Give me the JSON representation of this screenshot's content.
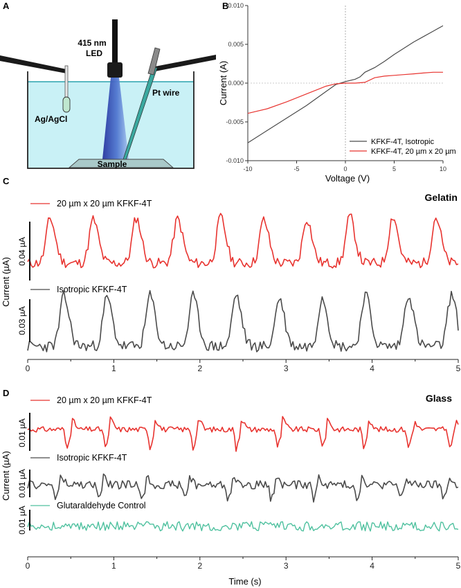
{
  "panel_a": {
    "label": "A",
    "led_label_line1": "415 nm",
    "led_label_line2": "LED",
    "pt_label": "Pt wire",
    "ref_label": "Ag/AgCl",
    "sample_label": "Sample"
  },
  "colors": {
    "red": "#e8332f",
    "gray": "#4a4a4a",
    "teal": "#4fc19f",
    "water": "#c9f1f6",
    "water_line": "#2aa3ad",
    "axis": "#333333"
  },
  "chart_data": [
    {
      "panel": "B",
      "type": "line",
      "xlabel": "Voltage (V)",
      "ylabel": "Current (A)",
      "xlim": [
        -10,
        10
      ],
      "ylim": [
        -0.01,
        0.01
      ],
      "xticks": [
        -10,
        -5,
        0,
        5,
        10
      ],
      "yticks": [
        -0.01,
        -0.005,
        0.0,
        0.005,
        0.01
      ],
      "ytick_labels": [
        "-0.010",
        "-0.005",
        "0.000",
        "0.005",
        "0.010"
      ],
      "grid": false,
      "reference_lines": "dotted at x=0 and y=0",
      "legend_position": "bottom-right",
      "series": [
        {
          "name": "KFKF-4T, Isotropic",
          "color": "gray",
          "x": [
            -10,
            -8,
            -6,
            -4,
            -2,
            -1,
            0,
            1,
            1.5,
            2,
            3,
            4,
            5,
            6,
            7,
            8,
            9,
            10
          ],
          "y": [
            -0.0077,
            -0.0061,
            -0.0045,
            -0.0029,
            -0.0011,
            -0.0002,
            0.0002,
            0.0005,
            0.0008,
            0.0014,
            0.002,
            0.0028,
            0.0037,
            0.0045,
            0.0053,
            0.006,
            0.0067,
            0.0074
          ]
        },
        {
          "name": "KFKF-4T, 20 µm x 20 µm",
          "color": "red",
          "x": [
            -10,
            -8,
            -6,
            -4,
            -2,
            -1,
            0,
            1,
            2,
            3,
            4,
            5,
            6,
            7,
            8,
            9,
            10
          ],
          "y": [
            -0.0039,
            -0.0033,
            -0.0024,
            -0.0014,
            -0.0004,
            -0.0001,
            0.0,
            0.0,
            0.0001,
            0.0007,
            0.0009,
            0.001,
            0.0011,
            0.0012,
            0.0013,
            0.0014,
            0.0014
          ]
        }
      ]
    },
    {
      "panel": "C",
      "type": "line",
      "title": "Gelatin",
      "xlabel": "",
      "ylabel": "Current (µA)",
      "xlim": [
        0,
        5
      ],
      "xticks": [
        0,
        1,
        2,
        3,
        4,
        5
      ],
      "series": [
        {
          "name": "20 µm x 20 µm KFKF-4T",
          "color": "red",
          "scale_bar": "0.04 µA",
          "period_s": 0.5,
          "first_peak_s": 0.26,
          "peak_times_s": [
            0.26,
            0.76,
            1.26,
            1.74,
            2.24,
            2.74,
            3.24,
            3.74,
            4.24,
            4.74
          ],
          "peak_heights": [
            0.95,
            0.93,
            0.96,
            0.94,
            0.98,
            0.92,
            0.95,
            0.99,
            1.0,
            0.98
          ]
        },
        {
          "name": "Isotropic KFKF-4T",
          "color": "gray",
          "scale_bar": "0.03 µA",
          "period_s": 0.5,
          "first_peak_s": 0.42,
          "peak_times_s": [
            0.42,
            0.92,
            1.42,
            1.92,
            2.42,
            2.92,
            3.42,
            3.92,
            4.42,
            4.92
          ],
          "peak_heights": [
            0.95,
            0.93,
            0.96,
            0.94,
            0.98,
            0.92,
            0.95,
            0.99,
            1.0,
            0.98
          ]
        }
      ]
    },
    {
      "panel": "D",
      "type": "line",
      "title": "Glass",
      "xlabel": "Time (s)",
      "ylabel": "Current (µA)",
      "xlim": [
        0,
        5
      ],
      "xticks": [
        0,
        1,
        2,
        3,
        4,
        5
      ],
      "series": [
        {
          "name": "20 µm x 20 µm KFKF-4T",
          "color": "red",
          "scale_bar": "0.01 µA",
          "period_s": 0.5,
          "first_drop_s": 0.45,
          "drop_times_s": [
            0.45,
            0.9,
            1.42,
            1.92,
            2.42,
            2.9,
            3.42,
            3.9,
            4.42,
            4.9
          ]
        },
        {
          "name": "Isotropic KFKF-4T",
          "color": "gray",
          "scale_bar": "0.01 µA",
          "period_s": 0.5,
          "first_drop_s": 0.32,
          "drop_times_s": [
            0.32,
            0.82,
            1.32,
            1.82,
            2.32,
            2.82,
            3.32,
            3.82,
            4.32,
            4.82
          ]
        },
        {
          "name": "Glutaraldehyde Control",
          "color": "teal",
          "scale_bar": "0.01 µA",
          "behavior": "noise-only, no periodic response"
        }
      ]
    }
  ],
  "text": {
    "panel_b_label": "B",
    "panel_c_label": "C",
    "panel_d_label": "D",
    "b_xlabel": "Voltage (V)",
    "b_ylabel": "Current (A)",
    "b_leg1": "KFKF-4T, Isotropic",
    "b_leg2": "KFKF-4T, 20 µm x 20 µm",
    "c_title": "Gelatin",
    "c_leg1": "20 µm x 20 µm KFKF-4T",
    "c_leg2": "Isotropic KFKF-4T",
    "c_ylabel": "Current (µA)",
    "c_sb1": "0.04 µA",
    "c_sb2": "0.03 µA",
    "d_title": "Glass",
    "d_leg1": "20 µm x 20 µm KFKF-4T",
    "d_leg2": "Isotropic KFKF-4T",
    "d_leg3": "Glutaraldehyde Control",
    "d_ylabel": "Current (µA)",
    "d_xlabel": "Time (s)",
    "d_sb1": "0.01 µA",
    "d_sb2": "0.01 µA",
    "d_sb3": "0.01 µA"
  }
}
